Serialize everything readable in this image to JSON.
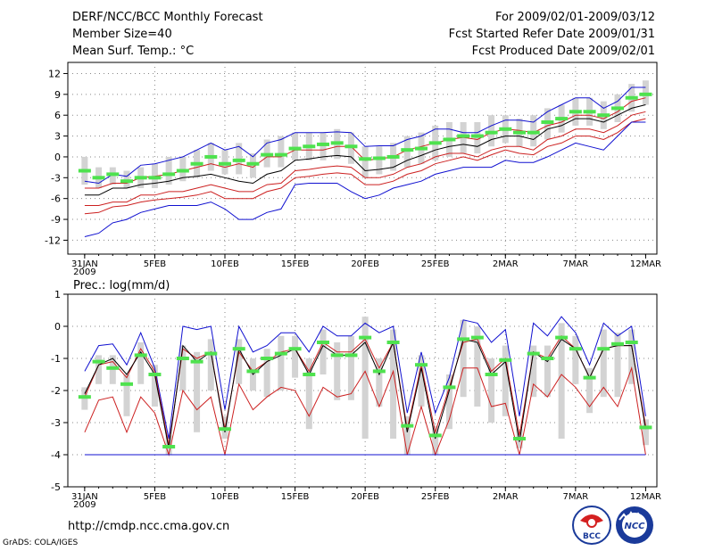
{
  "header": {
    "title": "DERF/NCC/BCC Monthly Forecast",
    "member_size": "Member Size=40",
    "variable": "Mean Surf. Temp.: °C",
    "period": "For 2009/02/01-2009/03/12",
    "start_date": "Fcst Started Refer Date 2009/01/31",
    "produced_date": "Fcst Produced Date 2009/02/01"
  },
  "footer": {
    "url": "http://cmdp.ncc.cma.gov.cn",
    "credit": "GrADS: COLA/IGES",
    "logo1_text": "BCC",
    "logo2_text": "NCC"
  },
  "colors": {
    "ensemble_box": "#d3d3d3",
    "ensemble_mean": "#4ee24e",
    "median": "#000000",
    "inner_bounds": "#cc2020",
    "outer_bounds": "#1010d0"
  },
  "chart_data": [
    {
      "type": "line",
      "subtitle": "Mean Surf. Temp.: °C",
      "xlabel": "",
      "ylabel": "°C",
      "ylim": [
        -14,
        13.6
      ],
      "yticks": [
        12,
        9,
        6,
        3,
        0,
        -3,
        -6,
        -9,
        -12
      ],
      "x_tick_labels": [
        "31JAN",
        "5FEB",
        "10FEB",
        "15FEB",
        "20FEB",
        "25FEB",
        "2MAR",
        "7MAR",
        "12MAR"
      ],
      "x_tick_days": [
        0,
        5,
        10,
        15,
        20,
        25,
        30,
        35,
        40
      ],
      "year_label": "2009",
      "grid": true,
      "x": [
        0,
        1,
        2,
        3,
        4,
        5,
        6,
        7,
        8,
        9,
        10,
        11,
        12,
        13,
        14,
        15,
        16,
        17,
        18,
        19,
        20,
        21,
        22,
        23,
        24,
        25,
        26,
        27,
        28,
        29,
        30,
        31,
        32,
        33,
        34,
        35,
        36,
        37,
        38,
        39,
        40
      ],
      "series": [
        {
          "name": "ensemble mean",
          "style": "dash-marker",
          "values": [
            -2,
            -3,
            -2.5,
            -3.5,
            -3,
            -3,
            -2.5,
            -2,
            -1,
            0,
            -1,
            -0.5,
            -1,
            0.3,
            0.3,
            1.2,
            1.5,
            1.8,
            2,
            1.5,
            -0.3,
            -0.2,
            0,
            1,
            1.2,
            2,
            2.5,
            3,
            3,
            3.5,
            4,
            3.5,
            3.5,
            5,
            5.5,
            6.5,
            6.5,
            6,
            7,
            8.5,
            9
          ]
        },
        {
          "name": "ensemble spread",
          "style": "box",
          "low": [
            -4,
            -4.5,
            -4,
            -4.5,
            -4.5,
            -4.5,
            -4,
            -3.5,
            -3,
            -2,
            -2.5,
            -2.5,
            -3,
            -1.5,
            -1.5,
            -0.5,
            -0.5,
            -0.5,
            -0.3,
            -1,
            -3,
            -2.5,
            -2,
            -1.5,
            -1,
            -0.5,
            0,
            0.5,
            0.5,
            1.5,
            2,
            1.5,
            1.5,
            2.5,
            3.5,
            4.5,
            4.5,
            4,
            5,
            6.5,
            7.5
          ],
          "high": [
            0,
            -1.5,
            -1.5,
            -2,
            -1.5,
            -1,
            0,
            0,
            1,
            2,
            1,
            2,
            0.5,
            2.5,
            3,
            3.5,
            3.5,
            3.5,
            4,
            3.5,
            1.5,
            1.5,
            2,
            3,
            3.5,
            4.5,
            5,
            5,
            5,
            6,
            6,
            5.5,
            6,
            7,
            7.5,
            8.5,
            8.5,
            8,
            9,
            10.5,
            11
          ]
        },
        {
          "name": "upper bound",
          "color": "blue",
          "values": [
            -3.5,
            -3.8,
            -2.5,
            -2.8,
            -1.2,
            -1,
            -0.5,
            0,
            1,
            2,
            1,
            1.5,
            0,
            2,
            2.5,
            3.5,
            3.5,
            3.5,
            3.6,
            3.5,
            1.5,
            1.6,
            1.6,
            2.5,
            3,
            4,
            4,
            3.5,
            3.5,
            4.5,
            5.3,
            5.3,
            5,
            6.5,
            7.5,
            8.5,
            8.5,
            7,
            8,
            10,
            10
          ]
        },
        {
          "name": "upper inner",
          "color": "red",
          "values": [
            -4.5,
            -4.5,
            -3.8,
            -3.8,
            -3,
            -2.8,
            -2.5,
            -2,
            -1.5,
            -1,
            -1.5,
            -1,
            -1.5,
            0,
            0,
            1,
            1,
            1,
            1.5,
            1.5,
            -0.5,
            -0.3,
            0,
            1,
            1.5,
            2,
            2.5,
            2.8,
            2.5,
            3.5,
            4,
            3.8,
            3.5,
            4.5,
            5,
            6,
            6,
            5.5,
            6.5,
            8,
            8.5
          ]
        },
        {
          "name": "median",
          "color": "black",
          "values": [
            -5.5,
            -5.5,
            -4.5,
            -4.5,
            -4,
            -3.8,
            -3.5,
            -3,
            -2.8,
            -2.5,
            -3,
            -3.5,
            -3.8,
            -2.5,
            -2,
            -0.5,
            -0.3,
            0,
            0.2,
            0,
            -2,
            -1.8,
            -1.5,
            -0.5,
            0.2,
            1,
            1.5,
            1.8,
            1.5,
            2.5,
            3,
            3,
            2.5,
            4,
            4.5,
            5.5,
            5.5,
            5,
            6,
            7,
            7.5
          ]
        },
        {
          "name": "lower inner",
          "color": "red",
          "values": [
            -7,
            -7,
            -6.5,
            -6.5,
            -5.5,
            -5.5,
            -5,
            -5,
            -4.5,
            -4,
            -4.5,
            -5,
            -5,
            -4,
            -3.8,
            -2,
            -1.8,
            -1.5,
            -1.3,
            -1.5,
            -3,
            -3,
            -2.5,
            -1.5,
            -1,
            0,
            0.5,
            0.5,
            0,
            1,
            1.5,
            1.5,
            1,
            2.5,
            3,
            4,
            4,
            3.5,
            4.5,
            6,
            6.5
          ]
        },
        {
          "name": "lower inner 2",
          "color": "red",
          "values": [
            -8.2,
            -8,
            -7.2,
            -7,
            -6.5,
            -6.2,
            -6,
            -5.8,
            -5.5,
            -5,
            -6,
            -6,
            -6,
            -5,
            -4.5,
            -3,
            -2.8,
            -2.5,
            -2.3,
            -2.5,
            -4,
            -4,
            -3.5,
            -2.5,
            -2,
            -1,
            -0.5,
            0,
            -0.5,
            0.3,
            1,
            0.5,
            0.3,
            1.5,
            2,
            3,
            3,
            2.5,
            3.5,
            5,
            5.5
          ]
        },
        {
          "name": "lower bound",
          "color": "blue",
          "values": [
            -11.5,
            -11,
            -9.5,
            -9,
            -8,
            -7.5,
            -7,
            -7,
            -7,
            -6.5,
            -7.5,
            -9,
            -9,
            -8,
            -7.5,
            -4,
            -3.8,
            -3.8,
            -3.8,
            -5,
            -6,
            -5.5,
            -4.5,
            -4,
            -3.5,
            -2.5,
            -2,
            -1.5,
            -1.5,
            -1.5,
            -0.5,
            -0.8,
            -0.8,
            0,
            1,
            2,
            1.5,
            1,
            3,
            5,
            5
          ]
        }
      ]
    },
    {
      "type": "line",
      "subtitle": "Prec.: log(mm/d)",
      "xlabel": "",
      "ylabel": "log(mm/d)",
      "ylim": [
        -5,
        1
      ],
      "yticks": [
        1,
        0,
        -1,
        -2,
        -3,
        -4,
        -5
      ],
      "x_tick_labels": [
        "31JAN",
        "5FEB",
        "10FEB",
        "15FEB",
        "20FEB",
        "25FEB",
        "2MAR",
        "7MAR",
        "12MAR"
      ],
      "x_tick_days": [
        0,
        5,
        10,
        15,
        20,
        25,
        30,
        35,
        40
      ],
      "year_label": "2009",
      "grid": true,
      "x": [
        0,
        1,
        2,
        3,
        4,
        5,
        6,
        7,
        8,
        9,
        10,
        11,
        12,
        13,
        14,
        15,
        16,
        17,
        18,
        19,
        20,
        21,
        22,
        23,
        24,
        25,
        26,
        27,
        28,
        29,
        30,
        31,
        32,
        33,
        34,
        35,
        36,
        37,
        38,
        39,
        40
      ],
      "series": [
        {
          "name": "ensemble mean",
          "style": "dash-marker",
          "values": [
            -2.2,
            -1.1,
            -1.3,
            -1.8,
            -0.9,
            -1.5,
            -3.75,
            -1,
            -1.1,
            -0.85,
            -3.2,
            -0.7,
            -1.4,
            -1,
            -0.85,
            -0.7,
            -1.5,
            -0.5,
            -0.9,
            -0.9,
            -0.35,
            -1.4,
            -0.5,
            -3.1,
            -1.2,
            -3.4,
            -1.9,
            -0.4,
            -0.35,
            -1.5,
            -1.05,
            -3.5,
            -0.85,
            -1,
            -0.35,
            -0.7,
            -1.6,
            -0.7,
            -0.55,
            -0.5,
            -3.15
          ]
        },
        {
          "name": "ensemble spread",
          "style": "box",
          "low": [
            -2.6,
            -1.8,
            -1.8,
            -2.8,
            -1.8,
            -2.5,
            -4,
            -2,
            -3.3,
            -2,
            -3.5,
            -1.8,
            -2,
            -2.2,
            -2,
            -1.6,
            -3.2,
            -1.5,
            -2.3,
            -2.3,
            -3.5,
            -2.5,
            -3.5,
            -4,
            -2.5,
            -4,
            -3.2,
            -2.2,
            -2.5,
            -3,
            -2.8,
            -3.8,
            -2.2,
            -2.2,
            -3.5,
            -1.8,
            -2.7,
            -2.2,
            -2.2,
            -1.8,
            -3.7
          ]
        },
        {
          "name": "ensemble spread high",
          "style": "box",
          "high": [
            -1.9,
            -0.9,
            -0.9,
            -1.5,
            -0.5,
            -1.2,
            -3.4,
            -0.6,
            -0.8,
            -0.4,
            -2.8,
            -0.4,
            -1,
            -0.7,
            -0.3,
            -0.3,
            -1,
            -0.1,
            -0.5,
            -0.3,
            0.3,
            -1,
            -0.1,
            -2.8,
            -0.9,
            -3.1,
            -1.5,
            0.2,
            0,
            -1,
            -0.6,
            -3.2,
            -0.6,
            -0.6,
            0.1,
            -0.3,
            -1.3,
            -0.1,
            -0.2,
            -0.1,
            -2.9
          ]
        },
        {
          "name": "upper bound",
          "color": "blue",
          "values": [
            -1.4,
            -0.6,
            -0.55,
            -1.2,
            -0.2,
            -1.3,
            -3.5,
            0,
            -0.1,
            0,
            -2.6,
            0,
            -0.8,
            -0.6,
            -0.2,
            -0.2,
            -0.8,
            0,
            -0.3,
            -0.3,
            0.1,
            -0.2,
            0,
            -2.7,
            -0.8,
            -2.7,
            -1.6,
            0.2,
            0.1,
            -0.5,
            -0.1,
            -2.8,
            0.1,
            -0.3,
            0.3,
            -0.2,
            -1.2,
            0.1,
            -0.3,
            0,
            -2.8
          ]
        },
        {
          "name": "upper inner",
          "color": "red",
          "values": [
            -2.2,
            -1.2,
            -1.1,
            -1.6,
            -0.7,
            -1.4,
            -3.7,
            -0.7,
            -1,
            -0.8,
            -3.2,
            -0.8,
            -1.4,
            -1.1,
            -0.8,
            -0.7,
            -1.4,
            -0.5,
            -0.8,
            -0.8,
            -0.4,
            -1.3,
            -0.5,
            -3.2,
            -1.2,
            -3.3,
            -1.9,
            -0.5,
            -0.4,
            -1.4,
            -1,
            -3.4,
            -0.8,
            -1,
            -0.3,
            -0.7,
            -1.6,
            -0.7,
            -0.6,
            -0.6,
            -3.1
          ]
        },
        {
          "name": "median",
          "color": "black",
          "values": [
            -2.1,
            -1.2,
            -1,
            -1.5,
            -0.8,
            -1.5,
            -3.8,
            -0.6,
            -1.1,
            -0.8,
            -3.3,
            -0.7,
            -1.5,
            -1.1,
            -0.9,
            -0.7,
            -1.5,
            -0.6,
            -0.9,
            -0.9,
            -0.5,
            -1.5,
            -0.5,
            -3.3,
            -1.3,
            -3.5,
            -2,
            -0.4,
            -0.5,
            -1.5,
            -1.1,
            -3.6,
            -0.8,
            -1.1,
            -0.4,
            -0.7,
            -1.6,
            -0.7,
            -0.6,
            -0.6,
            -3.2
          ]
        },
        {
          "name": "lower inner",
          "color": "red",
          "values": [
            -3.3,
            -2.3,
            -2.2,
            -3.3,
            -2.2,
            -2.7,
            -4,
            -2,
            -2.6,
            -2.2,
            -4,
            -1.8,
            -2.6,
            -2.2,
            -1.9,
            -2,
            -2.8,
            -1.9,
            -2.2,
            -2.1,
            -1.4,
            -2.5,
            -1.4,
            -4,
            -2.5,
            -4,
            -2.9,
            -1.3,
            -1.3,
            -2.5,
            -2.4,
            -4,
            -1.8,
            -2.2,
            -1.5,
            -1.9,
            -2.5,
            -1.9,
            -2.5,
            -1.3,
            -4
          ]
        },
        {
          "name": "lower bound",
          "color": "blue",
          "values": [
            -4,
            -4,
            -4,
            -4,
            -4,
            -4,
            -4,
            -4,
            -4,
            -4,
            -4,
            -4,
            -4,
            -4,
            -4,
            -4,
            -4,
            -4,
            -4,
            -4,
            -4,
            -4,
            -4,
            -4,
            -4,
            -4,
            -4,
            -4,
            -4,
            -4,
            -4,
            -4,
            -4,
            -4,
            -4,
            -4,
            -4,
            -4,
            -4,
            -4,
            -4
          ]
        }
      ]
    }
  ]
}
